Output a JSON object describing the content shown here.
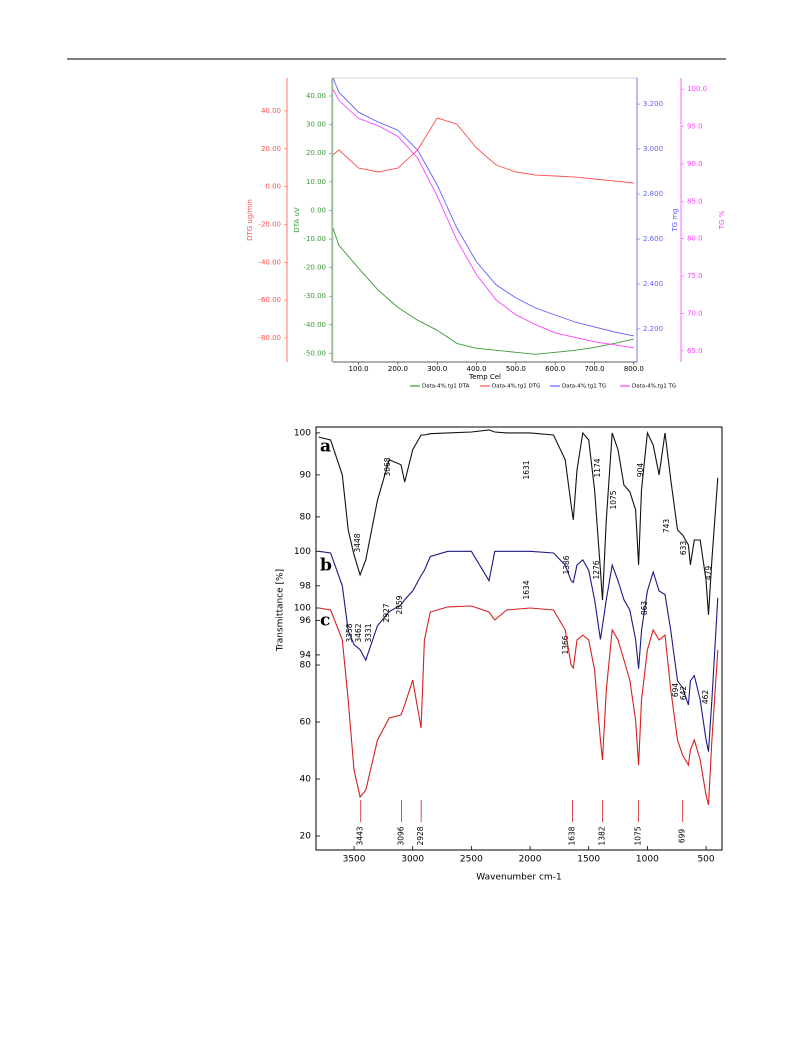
{
  "chart_data": [
    {
      "type": "line",
      "x_label": "Temp Cel",
      "x": [
        35,
        50,
        100,
        150,
        200,
        250,
        300,
        350,
        400,
        450,
        500,
        550,
        600,
        650,
        700,
        750,
        800
      ],
      "xlim": [
        35,
        808
      ],
      "xticks": [
        {
          "value": 100,
          "label": "100.0"
        },
        {
          "value": 200,
          "label": "200.0"
        },
        {
          "value": 300,
          "label": "300.0"
        },
        {
          "value": 400,
          "label": "400.0"
        },
        {
          "value": 500,
          "label": "500.0"
        },
        {
          "value": 600,
          "label": "600.0"
        },
        {
          "value": 700,
          "label": "700.0"
        },
        {
          "value": 800,
          "label": "800.0"
        }
      ],
      "axes": [
        {
          "label": "DTG ug/min",
          "color": "#ff5050",
          "lim": [
            -92.7,
            57.4
          ],
          "ticks": [
            {
              "value": 40,
              "label": "40.00"
            },
            {
              "value": 20,
              "label": "20.00"
            },
            {
              "value": 0,
              "label": "0.00"
            },
            {
              "value": -20,
              "label": "-20.00"
            },
            {
              "value": -40,
              "label": "-40.00"
            },
            {
              "value": -60,
              "label": "-60.00"
            },
            {
              "value": -80,
              "label": "-80.00"
            }
          ]
        },
        {
          "label": "DTA uV",
          "color": "#3a9a3a",
          "lim": [
            -53,
            46.3
          ],
          "ticks": [
            {
              "value": 40,
              "label": "40.00"
            },
            {
              "value": 30,
              "label": "30.00"
            },
            {
              "value": 20,
              "label": "20.00"
            },
            {
              "value": 10,
              "label": "10.00"
            },
            {
              "value": 0,
              "label": "0.00"
            },
            {
              "value": -10,
              "label": "-10.00"
            },
            {
              "value": -20,
              "label": "-20.00"
            },
            {
              "value": -30,
              "label": "-30.00"
            },
            {
              "value": -40,
              "label": "-40.00"
            },
            {
              "value": -50,
              "label": "-50.00"
            }
          ]
        },
        {
          "label": "TG mg",
          "color": "#6060ff",
          "lim": [
            2.053,
            3.316
          ],
          "ticks": [
            {
              "value": 3.2,
              "label": "3.200"
            },
            {
              "value": 3,
              "label": "3.000"
            },
            {
              "value": 2.8,
              "label": "2.800"
            },
            {
              "value": 2.6,
              "label": "2.600"
            },
            {
              "value": 2.4,
              "label": "2.400"
            },
            {
              "value": 2.2,
              "label": "2.200"
            }
          ]
        },
        {
          "label": "TG %",
          "color": "#ff40ff",
          "lim": [
            63.5,
            101.5
          ],
          "ticks": [
            {
              "value": 100,
              "label": "100.0"
            },
            {
              "value": 95,
              "label": "95.0"
            },
            {
              "value": 90,
              "label": "90.0"
            },
            {
              "value": 85,
              "label": "85.0"
            },
            {
              "value": 80,
              "label": "80.0"
            },
            {
              "value": 75,
              "label": "75.0"
            },
            {
              "value": 70,
              "label": "70.0"
            },
            {
              "value": 65,
              "label": "65.0"
            }
          ]
        }
      ],
      "series": [
        {
          "name": "Data-4%.tg1 DTA",
          "color": "#3a9a3a",
          "axis": 1,
          "values": [
            -6.2,
            -12.2,
            -20.2,
            -27.9,
            -33.9,
            -38.4,
            -41.9,
            -46.5,
            -48.2,
            -48.9,
            -49.6,
            -50.3,
            -49.6,
            -48.9,
            -47.9,
            -46.5,
            -45
          ]
        },
        {
          "name": "Data-4%.tg1 DTG",
          "color": "#ff5050",
          "axis": 0,
          "values": [
            16.7,
            19.4,
            9.8,
            7.7,
            9.8,
            19.4,
            36.3,
            33,
            20.4,
            11.4,
            7.7,
            6.1,
            5.6,
            5,
            4,
            3,
            1.9
          ]
        },
        {
          "name": "Data-4%.tg1 TG",
          "color": "#6060ff",
          "axis": 2,
          "values": [
            3.316,
            3.253,
            3.164,
            3.12,
            3.084,
            2.996,
            2.84,
            2.649,
            2.498,
            2.396,
            2.338,
            2.293,
            2.262,
            2.231,
            2.209,
            2.187,
            2.169
          ]
        },
        {
          "name": "Data-4%.tg1 TG",
          "color": "#ff40ff",
          "axis": 3,
          "values": [
            100,
            98.5,
            96.1,
            95.1,
            93.7,
            90.8,
            85.7,
            79.8,
            75.2,
            71.8,
            69.8,
            68.5,
            67.4,
            66.8,
            66.2,
            65.8,
            65.4
          ]
        }
      ]
    },
    {
      "type": "line",
      "x_label": "Wavenumber cm-1",
      "y_label": "Transmittance [%]",
      "xlim": [
        3824,
        364
      ],
      "xticks": [
        3500,
        3000,
        2500,
        2000,
        1500,
        1000,
        500
      ],
      "x": [
        3800,
        3700,
        3600,
        3550,
        3500,
        3448,
        3400,
        3300,
        3200,
        3100,
        3068,
        3000,
        2928,
        2900,
        2850,
        2700,
        2500,
        2350,
        2300,
        2200,
        2000,
        1800,
        1700,
        1650,
        1631,
        1600,
        1550,
        1500,
        1450,
        1400,
        1382,
        1350,
        1300,
        1250,
        1200,
        1150,
        1100,
        1075,
        1050,
        1000,
        950,
        900,
        850,
        800,
        743,
        700,
        650,
        633,
        600,
        550,
        500,
        479,
        450,
        400
      ],
      "series": [
        {
          "name": "a",
          "color": "#111111",
          "ylim": [
            0.7,
            101.4
          ],
          "yticks": [
            100,
            90,
            80
          ],
          "values": [
            99,
            98.3,
            90,
            76.9,
            71,
            66.2,
            69.8,
            84,
            93.6,
            92.4,
            88.3,
            96,
            99.5,
            99.5,
            99.8,
            100,
            100.2,
            100.7,
            100.2,
            100,
            100,
            99.5,
            93.6,
            82.9,
            79.3,
            91.2,
            100,
            98.3,
            86.4,
            67.4,
            60.2,
            79.3,
            100,
            96,
            87.6,
            86,
            81.7,
            68.6,
            86.4,
            100,
            97.1,
            90,
            100,
            88.8,
            76.9,
            75.7,
            73.3,
            68.6,
            74.5,
            74.5,
            65,
            56.7,
            69.8,
            89.3
          ],
          "peak_labels": [
            3448,
            3068,
            1631,
            1386,
            1174,
            1075,
            904,
            743,
            633,
            479
          ]
        },
        {
          "name": "b",
          "color": "#1a1a80",
          "ylim": [
            82.7,
            107.2
          ],
          "yticks": [
            100,
            98,
            96,
            94
          ],
          "values": [
            100,
            99.9,
            98,
            95.4,
            94.6,
            94.3,
            93.7,
            95.7,
            96.5,
            96.9,
            97.2,
            97.7,
            98.6,
            98.9,
            99.7,
            100,
            100,
            98.3,
            100,
            100,
            100,
            99.9,
            99.2,
            98.3,
            98.2,
            99.2,
            99.5,
            98.9,
            97.2,
            94.9,
            95.7,
            97.2,
            99.2,
            98.3,
            97.2,
            96.6,
            94.9,
            93.2,
            95.4,
            97.7,
            98.8,
            97.7,
            97.5,
            95.4,
            92.5,
            92.1,
            91.1,
            92.5,
            92.8,
            91.4,
            89.1,
            88.4,
            91.4,
            97.3
          ],
          "peak_labels": [
            3358,
            3462,
            3331,
            2927,
            2859,
            1634,
            1366,
            1276,
            863,
            694,
            642,
            462
          ]
        },
        {
          "name": "c",
          "color": "#d62020",
          "ylim": [
            15.1,
            163.5
          ],
          "yticks": [
            100,
            80,
            60,
            40,
            20
          ],
          "values": [
            100,
            99.3,
            88.8,
            67.7,
            43.2,
            33.7,
            36.1,
            53.7,
            61.4,
            62.5,
            66,
            74.7,
            57.9,
            88.8,
            98.6,
            100.4,
            100.7,
            98.6,
            95.8,
            99.3,
            100,
            99.3,
            92.3,
            80,
            78.9,
            88.8,
            90.5,
            88.8,
            78.2,
            53.7,
            46.7,
            71.2,
            92.3,
            88.8,
            81.8,
            74.7,
            60.7,
            44.9,
            67.7,
            85.3,
            92.3,
            88.8,
            90.5,
            71.2,
            53.7,
            48.4,
            44.9,
            50.2,
            53.7,
            46.7,
            34.4,
            30.9,
            53.7,
            85.3
          ],
          "marker_labels": [
            3443,
            3096,
            2928,
            1638,
            1382,
            1075,
            699
          ]
        }
      ]
    }
  ]
}
